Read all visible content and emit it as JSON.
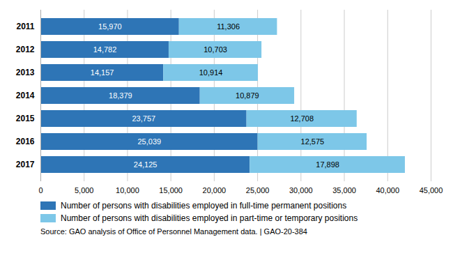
{
  "chart_data": {
    "type": "bar",
    "orientation": "horizontal",
    "stacked": true,
    "categories": [
      "2011",
      "2012",
      "2013",
      "2014",
      "2015",
      "2016",
      "2017"
    ],
    "series": [
      {
        "name": "Number of persons with disabilities employed in full-time permanent positions",
        "color": "#2e75b6",
        "values": [
          15970,
          14782,
          14157,
          18379,
          23757,
          25039,
          24125
        ],
        "value_labels": [
          "15,970",
          "14,782",
          "14,157",
          "18,379",
          "23,757",
          "25,039",
          "24,125"
        ]
      },
      {
        "name": "Number of persons with disabilities employed in part-time or temporary positions",
        "color": "#7dc7e8",
        "values": [
          11306,
          10703,
          10914,
          10879,
          12708,
          12575,
          17898
        ],
        "value_labels": [
          "11,306",
          "10,703",
          "10,914",
          "10,879",
          "12,708",
          "12,575",
          "17,898"
        ]
      }
    ],
    "xlim": [
      0,
      45000
    ],
    "xticks": [
      0,
      {
        "value": 5000,
        "label": "5,000"
      },
      {
        "value": 10000,
        "label": "10,000"
      },
      {
        "value": 15000,
        "label": "15,000"
      },
      {
        "value": 20000,
        "label": "20,000"
      },
      {
        "value": 25000,
        "label": "25,000"
      },
      {
        "value": 30000,
        "label": "30,000"
      },
      {
        "value": 35000,
        "label": "35,000"
      },
      {
        "value": 40000,
        "label": "40,000"
      },
      {
        "value": 45000,
        "label": "45,000"
      }
    ],
    "grid": true,
    "data_labels": true,
    "legend": "bottom",
    "caption": "Source: GAO analysis of Office of Personnel Management data.  |  GAO-20-384"
  }
}
